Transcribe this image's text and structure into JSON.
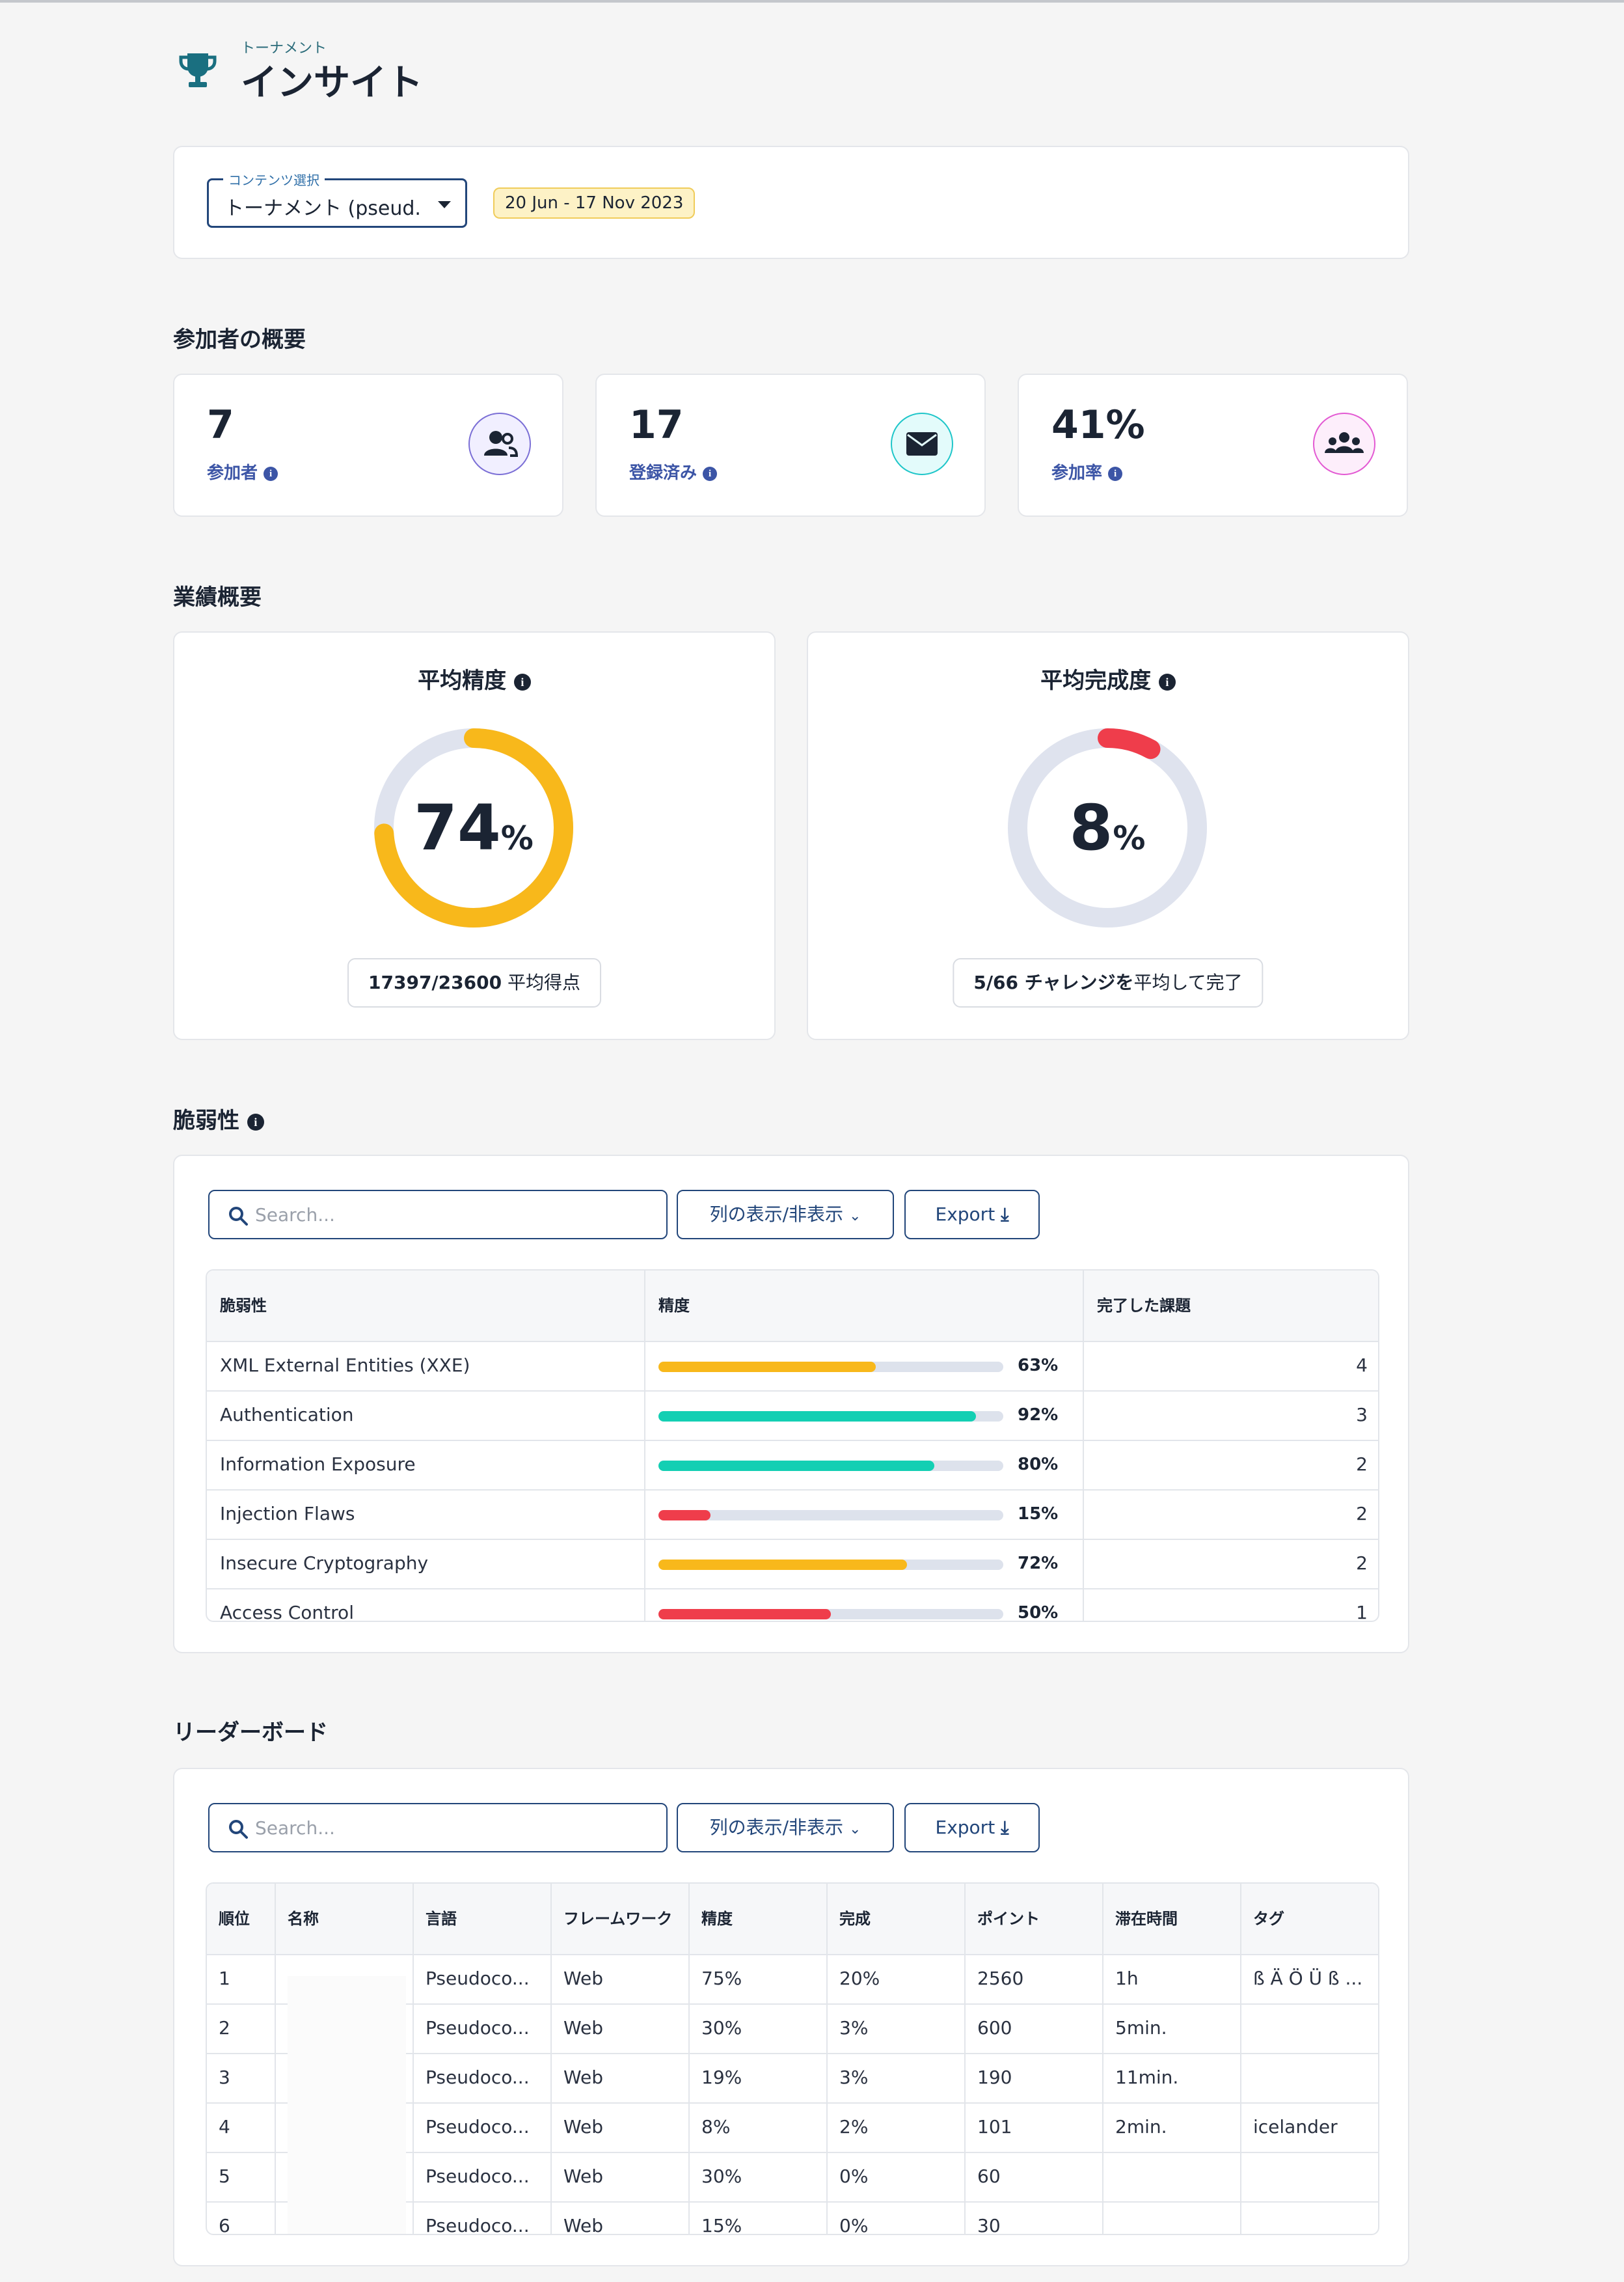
{
  "header": {
    "subtitle": "トーナメント",
    "title": "インサイト"
  },
  "content_select": {
    "legend": "コンテンツ選択",
    "value": "トーナメント (pseud...",
    "date_range": "20 Jun - 17 Nov 2023"
  },
  "participants": {
    "title": "参加者の概要",
    "stats": [
      {
        "value": "7",
        "label": "参加者",
        "icon": "users-icon",
        "color": "#7b6fd6"
      },
      {
        "value": "17",
        "label": "登録済み",
        "icon": "envelope-icon",
        "color": "#1fc6c9"
      },
      {
        "value": "41%",
        "label": "参加率",
        "icon": "group-icon",
        "color": "#e35ad3"
      }
    ]
  },
  "performance": {
    "title": "業績概要",
    "accuracy": {
      "title": "平均精度",
      "value": "74",
      "unit": "%",
      "fraction": 0.74,
      "color": "#f8b81b",
      "score": "17397/23600",
      "score_suffix": " 平均得点"
    },
    "completion": {
      "title": "平均完成度",
      "value": "8",
      "unit": "%",
      "fraction": 0.08,
      "color": "#ef3d4b",
      "summary": "5/66 チャレンジを",
      "summary_suffix": "平均して完了"
    }
  },
  "vulnerabilities": {
    "title": "脆弱性",
    "search_placeholder": "Search...",
    "columns_button": "列の表示/非表示",
    "export_button": "Export",
    "headers": [
      "脆弱性",
      "精度",
      "完了した課題"
    ],
    "rows": [
      {
        "name": "XML External Entities (XXE)",
        "accuracy": "63%",
        "fraction": 0.63,
        "color": "#f8b81b",
        "completed": "4"
      },
      {
        "name": "Authentication",
        "accuracy": "92%",
        "fraction": 0.92,
        "color": "#13cfb3",
        "completed": "3"
      },
      {
        "name": "Information Exposure",
        "accuracy": "80%",
        "fraction": 0.8,
        "color": "#13cfb3",
        "completed": "2"
      },
      {
        "name": "Injection Flaws",
        "accuracy": "15%",
        "fraction": 0.15,
        "color": "#ef3d4b",
        "completed": "2"
      },
      {
        "name": "Insecure Cryptography",
        "accuracy": "72%",
        "fraction": 0.72,
        "color": "#f8b81b",
        "completed": "2"
      },
      {
        "name": "Access Control",
        "accuracy": "50%",
        "fraction": 0.5,
        "color": "#ef3d4b",
        "completed": "1"
      }
    ]
  },
  "leaderboard": {
    "title": "リーダーボード",
    "search_placeholder": "Search...",
    "columns_button": "列の表示/非表示",
    "export_button": "Export",
    "headers": [
      "順位",
      "名称",
      "言語",
      "フレームワーク",
      "精度",
      "完成",
      "ポイント",
      "滞在時間",
      "タグ"
    ],
    "rows": [
      [
        "1",
        "",
        "Pseudoco...",
        "Web",
        "75%",
        "20%",
        "2560",
        "1h",
        "ß Ä Ö Ü ß ..."
      ],
      [
        "2",
        "",
        "Pseudoco...",
        "Web",
        "30%",
        "3%",
        "600",
        "5min.",
        ""
      ],
      [
        "3",
        "",
        "Pseudoco...",
        "Web",
        "19%",
        "3%",
        "190",
        "11min.",
        ""
      ],
      [
        "4",
        "",
        "Pseudoco...",
        "Web",
        "8%",
        "2%",
        "101",
        "2min.",
        "icelander"
      ],
      [
        "5",
        "",
        "Pseudoco...",
        "Web",
        "30%",
        "0%",
        "60",
        "",
        ""
      ],
      [
        "6",
        "",
        "Pseudoco...",
        "Web",
        "15%",
        "0%",
        "30",
        "",
        ""
      ]
    ]
  }
}
